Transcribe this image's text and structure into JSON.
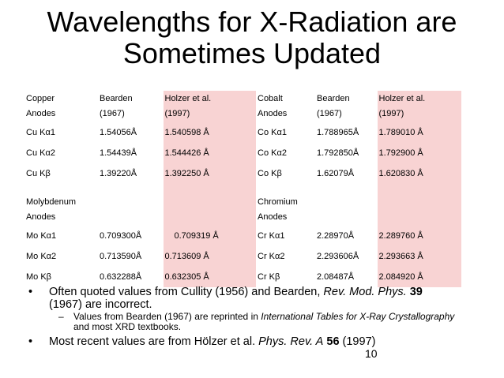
{
  "title_line1": "Wavelengths for X-Radiation are",
  "title_line2": "Sometimes Updated",
  "table": {
    "left_header": [
      "Copper",
      "Anodes"
    ],
    "right_header": [
      "Cobalt",
      "Anodes"
    ],
    "bearden_header": [
      "Bearden",
      "(1967)"
    ],
    "holzer_header": [
      "Holzer et al.",
      "(1997)"
    ],
    "copper_rows": [
      {
        "line": "Cu Kα1",
        "bearden": "1.54056Å",
        "holzer": "1.540598 Å"
      },
      {
        "line": "Cu Kα2",
        "bearden": "1.54439Å",
        "holzer": "1.544426 Å"
      },
      {
        "line": "Cu Kβ",
        "bearden": "1.39220Å",
        "holzer": "1.392250 Å"
      }
    ],
    "cobalt_rows": [
      {
        "line": "Co Kα1",
        "bearden": "1.788965Å",
        "holzer": "1.789010 Å"
      },
      {
        "line": "Co Kα2",
        "bearden": "1.792850Å",
        "holzer": "1.792900 Å"
      },
      {
        "line": "Co Kβ",
        "bearden": "1.62079Å",
        "holzer": "1.620830 Å"
      }
    ],
    "moly_header": [
      "Molybdenum",
      "Anodes"
    ],
    "chrom_header": [
      "Chromium",
      "Anodes"
    ],
    "moly_rows": [
      {
        "line": "Mo Kα1",
        "bearden": "0.709300Å",
        "holzer": "0.709319 Å"
      },
      {
        "line": "Mo Kα2",
        "bearden": "0.713590Å",
        "holzer": "0.713609 Å"
      },
      {
        "line": "Mo Kβ",
        "bearden": "0.632288Å",
        "holzer": "0.632305 Å"
      }
    ],
    "chrom_rows": [
      {
        "line": "Cr Kα1",
        "bearden": "2.28970Å",
        "holzer": "2.289760 Å"
      },
      {
        "line": "Cr Kα2",
        "bearden": "2.293606Å",
        "holzer": "2.293663 Å"
      },
      {
        "line": "Cr Kβ",
        "bearden": "2.08487Å",
        "holzer": "2.084920 Å"
      }
    ]
  },
  "bullets": {
    "b1_text_a": "Often quoted values from Cullity (1956) and Bearden, ",
    "b1_journal": "Rev. Mod. Phys.",
    "b1_volume": "39",
    "b1_text_b": "(1967) are incorrect.",
    "sub_text_a": "Values from Bearden (1967) are reprinted in ",
    "sub_italic": "International Tables for X-Ray Crystallography",
    "sub_text_b": " and most XRD textbooks.",
    "b2_text_a": "Most recent values are from Hölzer et al. ",
    "b2_journal": "Phys. Rev. A",
    "b2_volume": "56",
    "b2_text_b": " (1997)"
  },
  "page_number": "10",
  "colors": {
    "highlight": "#f8d3d3"
  }
}
